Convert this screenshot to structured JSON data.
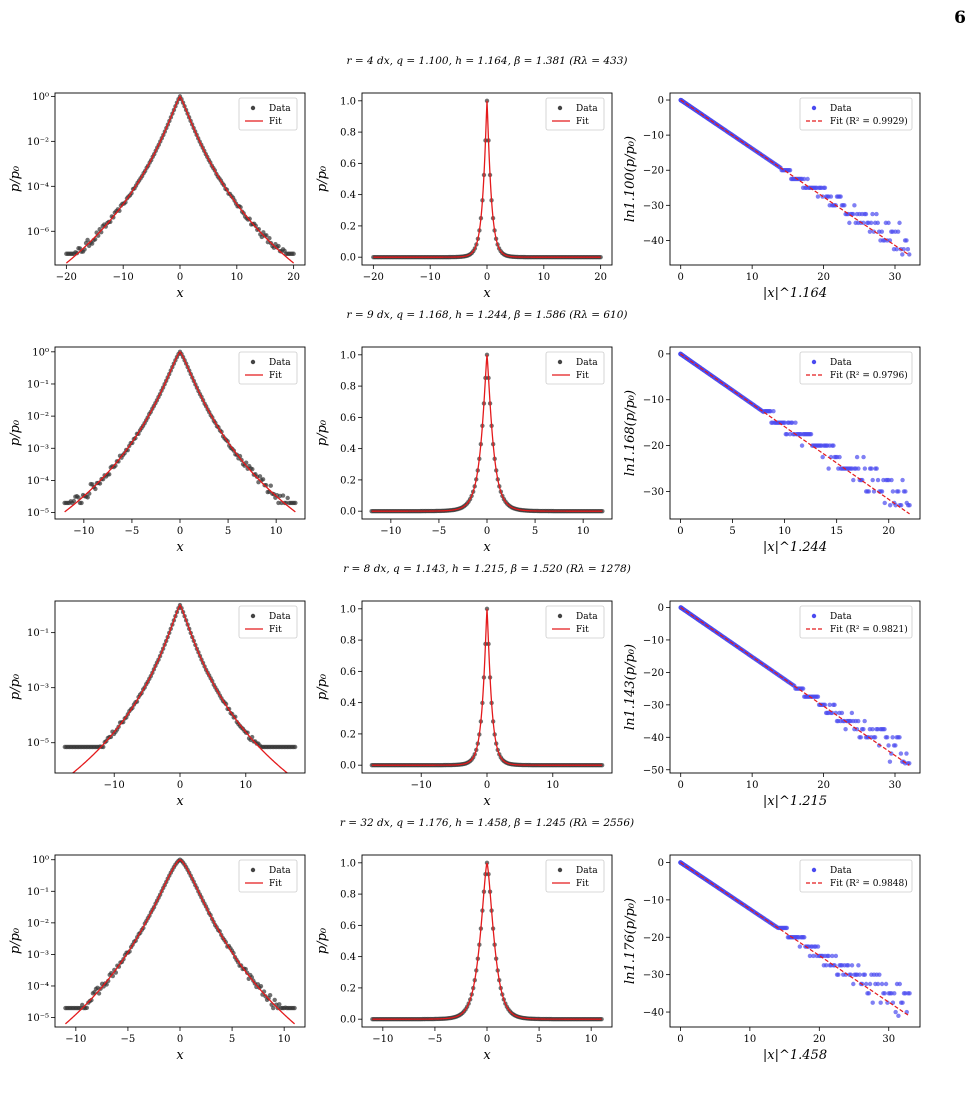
{
  "page_number": "6",
  "rows": [
    {
      "title": "r = 4 dx, q = 1.100, h = 1.164, β = 1.381 (Rλ = 433)"
    },
    {
      "title": "r = 9 dx, q = 1.168, h = 1.244, β = 1.586 (Rλ = 610)"
    },
    {
      "title": "r = 8 dx, q = 1.143, h = 1.215, β = 1.520 (Rλ = 1278)"
    },
    {
      "title": "r = 32 dx, q = 1.176, h = 1.458, β = 1.245 (Rλ = 2556)"
    }
  ],
  "chart_data": [
    {
      "type": "scatter",
      "row": 0,
      "col": 0,
      "scale": "log",
      "xlim": [
        -22,
        22
      ],
      "ylim_log10": [
        -7.5,
        0.15
      ],
      "xticks": [
        -20,
        -10,
        0,
        10,
        20
      ],
      "xticklabels": [
        "−20",
        "−10",
        "0",
        "10",
        "20"
      ],
      "yticks": [
        0,
        -2,
        -4,
        -6
      ],
      "yticklabels": [
        "10⁰",
        "10⁻²",
        "10⁻⁴",
        "10⁻⁶"
      ],
      "xlabel": "x",
      "ylabel": "p/p₀",
      "curve": {
        "q": 1.1,
        "h": 1.164,
        "beta": 1.381,
        "xmax": 20,
        "floor": 1e-07
      },
      "legend": [
        {
          "label": "Data",
          "kind": "dot",
          "color": "#444444"
        },
        {
          "label": "Fit",
          "kind": "line",
          "color": "#e41a1c"
        }
      ]
    },
    {
      "type": "scatter",
      "row": 0,
      "col": 1,
      "scale": "linear",
      "xlim": [
        -22,
        22
      ],
      "ylim": [
        -0.05,
        1.05
      ],
      "xticks": [
        -20,
        -10,
        0,
        10,
        20
      ],
      "xticklabels": [
        "−20",
        "−10",
        "0",
        "10",
        "20"
      ],
      "yticks": [
        0,
        0.2,
        0.4,
        0.6,
        0.8,
        1.0
      ],
      "yticklabels": [
        "0.0",
        "0.2",
        "0.4",
        "0.6",
        "0.8",
        "1.0"
      ],
      "xlabel": "x",
      "ylabel": "p/p₀",
      "curve": {
        "q": 1.1,
        "h": 1.164,
        "beta": 1.381,
        "xmax": 20
      },
      "legend": [
        {
          "label": "Data",
          "kind": "dot",
          "color": "#444444"
        },
        {
          "label": "Fit",
          "kind": "line",
          "color": "#e41a1c"
        }
      ]
    },
    {
      "type": "scatter",
      "row": 0,
      "col": 2,
      "scale": "qlog",
      "xlim": [
        -1.5,
        33.5
      ],
      "ylim": [
        -47,
        2
      ],
      "xticks": [
        0,
        10,
        20,
        30
      ],
      "xticklabels": [
        "0",
        "10",
        "20",
        "30"
      ],
      "yticks": [
        0,
        -10,
        -20,
        -30,
        -40
      ],
      "yticklabels": [
        "0",
        "−10",
        "−20",
        "−30",
        "−40"
      ],
      "xlabel": "|x|^1.164",
      "ylabel": "ln1.100(p/p₀)",
      "fit_slope": -1.381,
      "fit_xmax": 32,
      "scatter_start": 14,
      "legend": [
        {
          "label": "Data",
          "kind": "dot",
          "color": "#4a4af0"
        },
        {
          "label": "Fit (R² = 0.9929)",
          "kind": "dash",
          "color": "#e41a1c"
        }
      ]
    },
    {
      "type": "scatter",
      "row": 1,
      "col": 0,
      "scale": "log",
      "xlim": [
        -13,
        13
      ],
      "ylim_log10": [
        -5.2,
        0.15
      ],
      "xticks": [
        -10,
        -5,
        0,
        5,
        10
      ],
      "xticklabels": [
        "−10",
        "−5",
        "0",
        "5",
        "10"
      ],
      "yticks": [
        0,
        -1,
        -2,
        -3,
        -4,
        -5
      ],
      "yticklabels": [
        "10⁰",
        "10⁻¹",
        "10⁻²",
        "10⁻³",
        "10⁻⁴",
        "10⁻⁵"
      ],
      "xlabel": "x",
      "ylabel": "p/p₀",
      "curve": {
        "q": 1.168,
        "h": 1.244,
        "beta": 1.586,
        "xmax": 12,
        "floor": 2e-05
      },
      "legend": [
        {
          "label": "Data",
          "kind": "dot",
          "color": "#444444"
        },
        {
          "label": "Fit",
          "kind": "line",
          "color": "#e41a1c"
        }
      ]
    },
    {
      "type": "scatter",
      "row": 1,
      "col": 1,
      "scale": "linear",
      "xlim": [
        -13,
        13
      ],
      "ylim": [
        -0.05,
        1.05
      ],
      "xticks": [
        -10,
        -5,
        0,
        5,
        10
      ],
      "xticklabels": [
        "−10",
        "−5",
        "0",
        "5",
        "10"
      ],
      "yticks": [
        0,
        0.2,
        0.4,
        0.6,
        0.8,
        1.0
      ],
      "yticklabels": [
        "0.0",
        "0.2",
        "0.4",
        "0.6",
        "0.8",
        "1.0"
      ],
      "xlabel": "x",
      "ylabel": "p/p₀",
      "curve": {
        "q": 1.168,
        "h": 1.244,
        "beta": 1.586,
        "xmax": 12
      },
      "legend": [
        {
          "label": "Data",
          "kind": "dot",
          "color": "#444444"
        },
        {
          "label": "Fit",
          "kind": "line",
          "color": "#e41a1c"
        }
      ]
    },
    {
      "type": "scatter",
      "row": 1,
      "col": 2,
      "scale": "qlog",
      "xlim": [
        -1,
        23
      ],
      "ylim": [
        -36,
        1.5
      ],
      "xticks": [
        0,
        5,
        10,
        15,
        20
      ],
      "xticklabels": [
        "0",
        "5",
        "10",
        "15",
        "20"
      ],
      "yticks": [
        0,
        -10,
        -20,
        -30
      ],
      "yticklabels": [
        "0",
        "−10",
        "−20",
        "−30"
      ],
      "xlabel": "|x|^1.244",
      "ylabel": "ln1.168(p/p₀)",
      "fit_slope": -1.586,
      "fit_xmax": 22,
      "scatter_start": 8,
      "legend": [
        {
          "label": "Data",
          "kind": "dot",
          "color": "#4a4af0"
        },
        {
          "label": "Fit (R² = 0.9796)",
          "kind": "dash",
          "color": "#e41a1c"
        }
      ]
    },
    {
      "type": "scatter",
      "row": 2,
      "col": 0,
      "scale": "log",
      "xlim": [
        -19,
        19
      ],
      "ylim_log10": [
        -6.1,
        0.15
      ],
      "xticks": [
        -10,
        0,
        10
      ],
      "xticklabels": [
        "−10",
        "0",
        "10"
      ],
      "yticks": [
        -1,
        -3,
        -5
      ],
      "yticklabels": [
        "10⁻¹",
        "10⁻³",
        "10⁻⁵"
      ],
      "xlabel": "x",
      "ylabel": "p/p₀",
      "curve": {
        "q": 1.143,
        "h": 1.215,
        "beta": 1.52,
        "xmax": 17.5,
        "floor": 7e-06
      },
      "legend": [
        {
          "label": "Data",
          "kind": "dot",
          "color": "#444444"
        },
        {
          "label": "Fit",
          "kind": "line",
          "color": "#e41a1c"
        }
      ]
    },
    {
      "type": "scatter",
      "row": 2,
      "col": 1,
      "scale": "linear",
      "xlim": [
        -19,
        19
      ],
      "ylim": [
        -0.05,
        1.05
      ],
      "xticks": [
        -10,
        0,
        10
      ],
      "xticklabels": [
        "−10",
        "0",
        "10"
      ],
      "yticks": [
        0,
        0.2,
        0.4,
        0.6,
        0.8,
        1.0
      ],
      "yticklabels": [
        "0.0",
        "0.2",
        "0.4",
        "0.6",
        "0.8",
        "1.0"
      ],
      "xlabel": "x",
      "ylabel": "p/p₀",
      "curve": {
        "q": 1.143,
        "h": 1.215,
        "beta": 1.52,
        "xmax": 17.5
      },
      "legend": [
        {
          "label": "Data",
          "kind": "dot",
          "color": "#444444"
        },
        {
          "label": "Fit",
          "kind": "line",
          "color": "#e41a1c"
        }
      ]
    },
    {
      "type": "scatter",
      "row": 2,
      "col": 2,
      "scale": "qlog",
      "xlim": [
        -1.5,
        33.5
      ],
      "ylim": [
        -51,
        2
      ],
      "xticks": [
        0,
        10,
        20,
        30
      ],
      "xticklabels": [
        "0",
        "10",
        "20",
        "30"
      ],
      "yticks": [
        0,
        -10,
        -20,
        -30,
        -40,
        -50
      ],
      "yticklabels": [
        "0",
        "−10",
        "−20",
        "−30",
        "−40",
        "−50"
      ],
      "xlabel": "|x|^1.215",
      "ylabel": "ln1.143(p/p₀)",
      "fit_slope": -1.52,
      "fit_xmax": 32,
      "scatter_start": 16,
      "legend": [
        {
          "label": "Data",
          "kind": "dot",
          "color": "#4a4af0"
        },
        {
          "label": "Fit (R² = 0.9821)",
          "kind": "dash",
          "color": "#e41a1c"
        }
      ]
    },
    {
      "type": "scatter",
      "row": 3,
      "col": 0,
      "scale": "log",
      "xlim": [
        -12,
        12
      ],
      "ylim_log10": [
        -5.3,
        0.15
      ],
      "xticks": [
        -10,
        -5,
        0,
        5,
        10
      ],
      "xticklabels": [
        "−10",
        "−5",
        "0",
        "5",
        "10"
      ],
      "yticks": [
        0,
        -1,
        -2,
        -3,
        -4,
        -5
      ],
      "yticklabels": [
        "10⁰",
        "10⁻¹",
        "10⁻²",
        "10⁻³",
        "10⁻⁴",
        "10⁻⁵"
      ],
      "xlabel": "x",
      "ylabel": "p/p₀",
      "curve": {
        "q": 1.176,
        "h": 1.458,
        "beta": 1.245,
        "xmax": 11,
        "floor": 2e-05
      },
      "legend": [
        {
          "label": "Data",
          "kind": "dot",
          "color": "#444444"
        },
        {
          "label": "Fit",
          "kind": "line",
          "color": "#e41a1c"
        }
      ]
    },
    {
      "type": "scatter",
      "row": 3,
      "col": 1,
      "scale": "linear",
      "xlim": [
        -12,
        12
      ],
      "ylim": [
        -0.05,
        1.05
      ],
      "xticks": [
        -10,
        -5,
        0,
        5,
        10
      ],
      "xticklabels": [
        "−10",
        "−5",
        "0",
        "5",
        "10"
      ],
      "yticks": [
        0,
        0.2,
        0.4,
        0.6,
        0.8,
        1.0
      ],
      "yticklabels": [
        "0.0",
        "0.2",
        "0.4",
        "0.6",
        "0.8",
        "1.0"
      ],
      "xlabel": "x",
      "ylabel": "p/p₀",
      "curve": {
        "q": 1.176,
        "h": 1.458,
        "beta": 1.245,
        "xmax": 11
      },
      "legend": [
        {
          "label": "Data",
          "kind": "dot",
          "color": "#444444"
        },
        {
          "label": "Fit",
          "kind": "line",
          "color": "#e41a1c"
        }
      ]
    },
    {
      "type": "scatter",
      "row": 3,
      "col": 2,
      "scale": "qlog",
      "xlim": [
        -1.5,
        34.5
      ],
      "ylim": [
        -44,
        2
      ],
      "xticks": [
        0,
        10,
        20,
        30
      ],
      "xticklabels": [
        "0",
        "10",
        "20",
        "30"
      ],
      "yticks": [
        0,
        -10,
        -20,
        -30,
        -40
      ],
      "yticklabels": [
        "0",
        "−10",
        "−20",
        "−30",
        "−40"
      ],
      "xlabel": "|x|^1.458",
      "ylabel": "ln1.176(p/p₀)",
      "fit_slope": -1.245,
      "fit_xmax": 33,
      "scatter_start": 14,
      "legend": [
        {
          "label": "Data",
          "kind": "dot",
          "color": "#4a4af0"
        },
        {
          "label": "Fit (R² = 0.9848)",
          "kind": "dash",
          "color": "#e41a1c"
        }
      ]
    }
  ]
}
